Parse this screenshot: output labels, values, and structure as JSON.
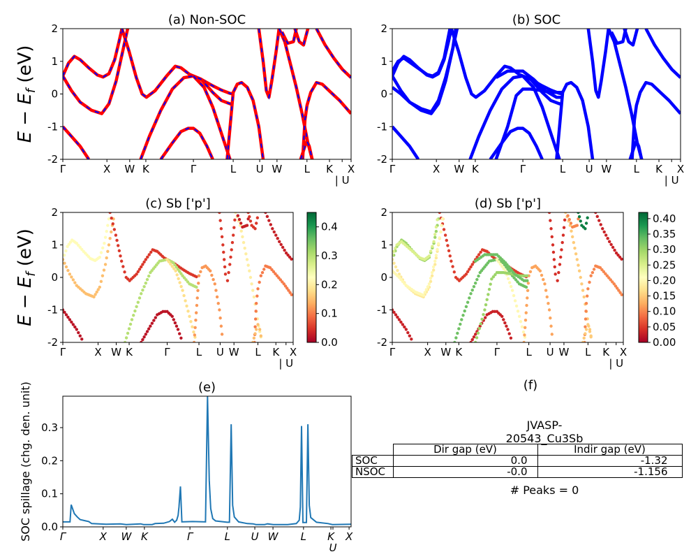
{
  "chart_data": [
    {
      "id": "a",
      "type": "line",
      "title": "(a) Non-SOC",
      "ylabel": {
        "main": "E − E",
        "sub": "f",
        "unit": " (eV)"
      },
      "ylim": [
        -2,
        2
      ],
      "yticks": [
        "2",
        "1",
        "0",
        "-1",
        "-2"
      ],
      "ytick_values": [
        2,
        1,
        0,
        -1,
        -2
      ],
      "xlim": [
        0,
        100
      ],
      "xticks": [
        {
          "k": 0,
          "label": "Γ"
        },
        {
          "k": 15.3,
          "label": "X"
        },
        {
          "k": 23.2,
          "label": "W"
        },
        {
          "k": 28.8,
          "label": "K"
        },
        {
          "k": 45.3,
          "label": "Γ"
        },
        {
          "k": 59.1,
          "label": "L"
        },
        {
          "k": 68.3,
          "label": "U"
        },
        {
          "k": 74.3,
          "label": "W"
        },
        {
          "k": 84.7,
          "label": "L"
        },
        {
          "k": 92.5,
          "label": "K"
        },
        {
          "k": 96.9,
          "label": "| U"
        },
        {
          "k": 100,
          "label": "X"
        }
      ],
      "line_color": "#ff0000",
      "overlay_color": "#0000ff",
      "overlay_style": "dashed"
    },
    {
      "id": "b",
      "type": "line",
      "title": "(b) SOC",
      "ylim": [
        -2,
        2
      ],
      "yticks": [
        "2",
        "1",
        "0",
        "-1",
        "-2"
      ],
      "ytick_values": [
        2,
        1,
        0,
        -1,
        -2
      ],
      "xlim": [
        0,
        100
      ],
      "xticks": [
        {
          "k": 0,
          "label": "Γ"
        },
        {
          "k": 15.3,
          "label": "X"
        },
        {
          "k": 23.2,
          "label": "W"
        },
        {
          "k": 28.8,
          "label": "K"
        },
        {
          "k": 45.3,
          "label": "Γ"
        },
        {
          "k": 59.1,
          "label": "L"
        },
        {
          "k": 68.3,
          "label": "U"
        },
        {
          "k": 74.3,
          "label": "W"
        },
        {
          "k": 84.7,
          "label": "L"
        },
        {
          "k": 92.5,
          "label": "K"
        },
        {
          "k": 96.9,
          "label": "| U"
        },
        {
          "k": 100,
          "label": "X"
        }
      ],
      "line_color": "#0000ff"
    },
    {
      "id": "c",
      "type": "scatter",
      "title": "(c)  Sb ['p']",
      "ylabel": {
        "main": "E − E",
        "sub": "f",
        "unit": " (eV)"
      },
      "ylim": [
        -2,
        2
      ],
      "yticks": [
        "2",
        "1",
        "0",
        "-1",
        "-2"
      ],
      "ytick_values": [
        2,
        1,
        0,
        -1,
        -2
      ],
      "xlim": [
        0,
        100
      ],
      "xticks": [
        {
          "k": 0,
          "label": "Γ"
        },
        {
          "k": 15.3,
          "label": "X"
        },
        {
          "k": 23.2,
          "label": "W"
        },
        {
          "k": 28.8,
          "label": "K"
        },
        {
          "k": 45.3,
          "label": "Γ"
        },
        {
          "k": 59.1,
          "label": "L"
        },
        {
          "k": 68.3,
          "label": "U"
        },
        {
          "k": 74.3,
          "label": "W"
        },
        {
          "k": 84.7,
          "label": "L"
        },
        {
          "k": 92.5,
          "label": "K"
        },
        {
          "k": 96.9,
          "label": "| U"
        },
        {
          "k": 100,
          "label": "X"
        }
      ],
      "colormap": "RdYlGn",
      "colorbar_range": [
        0,
        0.45
      ],
      "colorbar_ticks": [
        {
          "v": 0,
          "label": "0.0"
        },
        {
          "v": 0.1,
          "label": "0.1"
        },
        {
          "v": 0.2,
          "label": "0.2"
        },
        {
          "v": 0.3,
          "label": "0.3"
        },
        {
          "v": 0.4,
          "label": "0.4"
        }
      ]
    },
    {
      "id": "d",
      "type": "scatter",
      "title": "(d) Sb ['p']",
      "ylim": [
        -2,
        2
      ],
      "yticks": [
        "2",
        "1",
        "0",
        "-1",
        "-2"
      ],
      "ytick_values": [
        2,
        1,
        0,
        -1,
        -2
      ],
      "xlim": [
        0,
        100
      ],
      "xticks": [
        {
          "k": 0,
          "label": "Γ"
        },
        {
          "k": 15.3,
          "label": "X"
        },
        {
          "k": 23.2,
          "label": "W"
        },
        {
          "k": 28.8,
          "label": "K"
        },
        {
          "k": 45.3,
          "label": "Γ"
        },
        {
          "k": 59.1,
          "label": "L"
        },
        {
          "k": 68.3,
          "label": "U"
        },
        {
          "k": 74.3,
          "label": "W"
        },
        {
          "k": 84.7,
          "label": "L"
        },
        {
          "k": 92.5,
          "label": "K"
        },
        {
          "k": 96.9,
          "label": "| U"
        },
        {
          "k": 100,
          "label": "X"
        }
      ],
      "colormap": "RdYlGn",
      "colorbar_range": [
        0,
        0.42
      ],
      "colorbar_ticks": [
        {
          "v": 0,
          "label": "0.00"
        },
        {
          "v": 0.05,
          "label": "0.05"
        },
        {
          "v": 0.1,
          "label": "0.10"
        },
        {
          "v": 0.15,
          "label": "0.15"
        },
        {
          "v": 0.2,
          "label": "0.20"
        },
        {
          "v": 0.25,
          "label": "0.25"
        },
        {
          "v": 0.3,
          "label": "0.30"
        },
        {
          "v": 0.35,
          "label": "0.35"
        },
        {
          "v": 0.4,
          "label": "0.40"
        }
      ]
    },
    {
      "id": "e",
      "type": "line",
      "title": "(e)",
      "ylabel": "SOC spillage (chg. den. unit)",
      "ylim": [
        0,
        0.395
      ],
      "yticks": [
        "0.0",
        "0.1",
        "0.2",
        "0.3"
      ],
      "ytick_values": [
        0,
        0.1,
        0.2,
        0.3
      ],
      "xlim": [
        0,
        100
      ],
      "xticks": [
        {
          "k": 0,
          "label": "Γ"
        },
        {
          "k": 14.0,
          "label": "X"
        },
        {
          "k": 22.0,
          "label": "W"
        },
        {
          "k": 28.3,
          "label": "K"
        },
        {
          "k": 44.1,
          "label": "Γ"
        },
        {
          "k": 57.1,
          "label": "L"
        },
        {
          "k": 66.6,
          "label": "U"
        },
        {
          "k": 72.9,
          "label": "W"
        },
        {
          "k": 83.5,
          "label": "L"
        },
        {
          "k": 93.0,
          "label": "K"
        },
        {
          "k": 93.7,
          "label": "U"
        },
        {
          "k": 99.3,
          "label": "X"
        }
      ],
      "line_color": "#1f77b4",
      "points": [
        [
          0,
          0.015
        ],
        [
          2.5,
          0.015
        ],
        [
          2.9,
          0.067
        ],
        [
          4,
          0.04
        ],
        [
          5,
          0.03
        ],
        [
          6,
          0.022
        ],
        [
          8,
          0.018
        ],
        [
          9,
          0.016
        ],
        [
          10,
          0.01
        ],
        [
          15,
          0.008
        ],
        [
          20,
          0.009
        ],
        [
          22,
          0.007
        ],
        [
          27,
          0.009
        ],
        [
          28,
          0.007
        ],
        [
          31,
          0.007
        ],
        [
          32,
          0.01
        ],
        [
          35,
          0.011
        ],
        [
          37,
          0.016
        ],
        [
          38,
          0.023
        ],
        [
          38.8,
          0.014
        ],
        [
          39.5,
          0.02
        ],
        [
          40,
          0.035
        ],
        [
          40.3,
          0.06
        ],
        [
          40.8,
          0.122
        ],
        [
          41.3,
          0.015
        ],
        [
          45,
          0.016
        ],
        [
          49.5,
          0.015
        ],
        [
          50.2,
          0.395
        ],
        [
          50.8,
          0.14
        ],
        [
          51.3,
          0.055
        ],
        [
          52,
          0.025
        ],
        [
          53,
          0.018
        ],
        [
          57,
          0.014
        ],
        [
          57.8,
          0.014
        ],
        [
          58.4,
          0.31
        ],
        [
          58.9,
          0.065
        ],
        [
          59.5,
          0.03
        ],
        [
          61,
          0.015
        ],
        [
          64,
          0.01
        ],
        [
          66,
          0.009
        ],
        [
          67,
          0.007
        ],
        [
          70,
          0.007
        ],
        [
          71,
          0.009
        ],
        [
          73,
          0.007
        ],
        [
          78,
          0.007
        ],
        [
          81,
          0.01
        ],
        [
          82,
          0.02
        ],
        [
          82.4,
          0.06
        ],
        [
          82.8,
          0.305
        ],
        [
          83.3,
          0.013
        ],
        [
          84.5,
          0.013
        ],
        [
          85.0,
          0.31
        ],
        [
          85.5,
          0.065
        ],
        [
          86,
          0.028
        ],
        [
          88,
          0.014
        ],
        [
          92,
          0.01
        ],
        [
          93.5,
          0.007
        ],
        [
          100,
          0.008
        ]
      ]
    }
  ],
  "bands": [
    {
      "pts": [
        [
          0,
          0.55
        ],
        [
          2,
          0.95
        ],
        [
          4,
          1.15
        ],
        [
          6,
          1.05
        ],
        [
          9,
          0.8
        ],
        [
          12,
          0.58
        ],
        [
          14,
          0.52
        ],
        [
          16,
          0.62
        ],
        [
          18,
          1.05
        ],
        [
          19.5,
          1.6
        ],
        [
          20.5,
          2
        ]
      ],
      "w_c": 0.22,
      "w_d": 0.3
    },
    {
      "pts": [
        [
          0,
          0.55
        ],
        [
          3,
          0.1
        ],
        [
          6,
          -0.25
        ],
        [
          10,
          -0.5
        ],
        [
          13.5,
          -0.6
        ],
        [
          16,
          -0.3
        ],
        [
          18.5,
          0.4
        ],
        [
          20.5,
          1.2
        ],
        [
          22.5,
          2
        ]
      ],
      "w_c": 0.15,
      "w_d": 0.18
    },
    {
      "pts": [
        [
          0,
          -1
        ],
        [
          3,
          -1.3
        ],
        [
          6,
          -1.6
        ],
        [
          9,
          -2
        ]
      ],
      "w_c": 0.02,
      "w_d": 0.03
    },
    {
      "pts": [
        [
          20.5,
          2
        ],
        [
          23,
          1.3
        ],
        [
          25.5,
          0.5
        ],
        [
          27.5,
          0
        ],
        [
          29,
          -0.1
        ],
        [
          32,
          0.1
        ],
        [
          36,
          0.55
        ],
        [
          39,
          0.85
        ],
        [
          41,
          0.8
        ],
        [
          44,
          0.6
        ],
        [
          48,
          0.45
        ],
        [
          52,
          0.25
        ],
        [
          55,
          0.12
        ],
        [
          58,
          0.02
        ],
        [
          59.1,
          0
        ]
      ],
      "w_c": 0.05,
      "w_d": 0.05
    },
    {
      "pts": [
        [
          27,
          -2
        ],
        [
          30,
          -1.3
        ],
        [
          34,
          -0.5
        ],
        [
          38,
          0.15
        ],
        [
          42,
          0.5
        ],
        [
          45.3,
          0.55
        ],
        [
          48,
          0.45
        ],
        [
          52,
          0.05
        ],
        [
          55,
          -0.2
        ],
        [
          58,
          -0.3
        ],
        [
          59.1,
          -0.32
        ]
      ],
      "w_c": 0.3,
      "w_d": 0.33
    },
    {
      "pts": [
        [
          34,
          -2
        ],
        [
          38,
          -1.5
        ],
        [
          41,
          -1.15
        ],
        [
          43.5,
          -1.05
        ],
        [
          45.3,
          -1.05
        ],
        [
          47.5,
          -1.2
        ],
        [
          50,
          -1.6
        ],
        [
          52,
          -2
        ]
      ],
      "w_c": 0.02,
      "w_d": 0.03
    },
    {
      "pts": [
        [
          45.3,
          0.55
        ],
        [
          49,
          0.2
        ],
        [
          52,
          -0.4
        ],
        [
          55,
          -1.2
        ],
        [
          58,
          -2
        ]
      ],
      "w_c": 0.18,
      "w_d": 0.2
    },
    {
      "pts": [
        [
          57,
          -2
        ],
        [
          59.1,
          0.05
        ],
        [
          60.5,
          0.3
        ],
        [
          62,
          0.35
        ],
        [
          64,
          0.2
        ],
        [
          66,
          -0.2
        ],
        [
          68,
          -1
        ],
        [
          69.5,
          -2
        ]
      ],
      "w_c": 0.12,
      "w_d": 0.12
    },
    {
      "pts": [
        [
          68,
          2
        ],
        [
          69.5,
          1
        ],
        [
          70.6,
          0.1
        ],
        [
          71.5,
          -0.1
        ],
        [
          72.5,
          0.4
        ],
        [
          74,
          1.3
        ],
        [
          75,
          2
        ]
      ],
      "w_c": 0.05,
      "w_d": 0.04
    },
    {
      "pts": [
        [
          75,
          2
        ],
        [
          77,
          1.6
        ],
        [
          79,
          0.9
        ],
        [
          81,
          0.2
        ],
        [
          83,
          -0.6
        ],
        [
          85,
          -1.5
        ],
        [
          86.5,
          -2
        ]
      ],
      "w_c": 0.2,
      "w_d": 0.15
    },
    {
      "pts": [
        [
          76,
          1.9
        ],
        [
          78,
          1.55
        ],
        [
          80,
          1.6
        ],
        [
          81,
          2
        ]
      ],
      "w_c": 0.03,
      "w_d": 0.1
    },
    {
      "pts": [
        [
          83.2,
          -2
        ],
        [
          84,
          -0.8
        ],
        [
          84.7,
          -0.35
        ],
        [
          86,
          0.05
        ],
        [
          88,
          0.35
        ],
        [
          90,
          0.3
        ],
        [
          93,
          0.05
        ],
        [
          96,
          -0.2
        ],
        [
          100,
          -0.6
        ]
      ],
      "w_c": 0.1,
      "w_d": 0.1
    },
    {
      "pts": [
        [
          82.5,
          -2
        ],
        [
          84,
          -1.6
        ],
        [
          84.7,
          -1.45
        ],
        [
          85.5,
          -1.6
        ],
        [
          86.5,
          -2
        ]
      ],
      "w_c": 0.15,
      "w_d": 0.15
    },
    {
      "pts": [
        [
          88,
          2
        ],
        [
          91,
          1.5
        ],
        [
          94,
          1.1
        ],
        [
          97,
          0.75
        ],
        [
          100,
          0.5
        ]
      ],
      "w_c": 0.03,
      "w_d": 0.03
    },
    {
      "pts": [
        [
          80.5,
          2
        ],
        [
          82,
          1.6
        ],
        [
          83.5,
          1.5
        ],
        [
          85,
          2
        ]
      ],
      "w_c": 0.05,
      "w_d": 0.4
    }
  ],
  "soc_extra_bands": [
    {
      "pts": [
        [
          0,
          0.2
        ],
        [
          3,
          0
        ],
        [
          6,
          -0.25
        ],
        [
          10,
          -0.45
        ],
        [
          13.5,
          -0.55
        ],
        [
          16,
          -0.2
        ],
        [
          18.5,
          0.5
        ],
        [
          21,
          1.4
        ],
        [
          22,
          2
        ]
      ],
      "w_d": 0.2
    },
    {
      "pts": [
        [
          0,
          0.7
        ],
        [
          2,
          1.0
        ],
        [
          4,
          1.1
        ],
        [
          8,
          0.85
        ],
        [
          12,
          0.6
        ],
        [
          14,
          0.55
        ],
        [
          16,
          0.66
        ],
        [
          18,
          1.1
        ],
        [
          20,
          2
        ]
      ],
      "w_d": 0.25
    },
    {
      "pts": [
        [
          36,
          -2
        ],
        [
          40,
          -1
        ],
        [
          43,
          -0.05
        ],
        [
          45.3,
          0.15
        ],
        [
          48,
          0.15
        ],
        [
          52,
          0.1
        ],
        [
          55,
          0.05
        ],
        [
          59.1,
          0.05
        ]
      ],
      "w_d": 0.3
    },
    {
      "pts": [
        [
          36,
          0.5
        ],
        [
          40,
          0.7
        ],
        [
          45.3,
          0.7
        ],
        [
          49,
          0.45
        ],
        [
          53,
          0.1
        ],
        [
          57,
          -0.1
        ],
        [
          59.1,
          -0.1
        ]
      ],
      "w_d": 0.33
    }
  ],
  "table": {
    "title": "(f)",
    "subtitle": "JVASP-20543_Cu3Sb",
    "columns": [
      "Dir gap (eV)",
      "Indir gap (eV)"
    ],
    "rows": [
      {
        "label": "SOC",
        "values": [
          "0.0",
          "-1.32"
        ]
      },
      {
        "label": "NSOC",
        "values": [
          "-0.0",
          "-1.156"
        ]
      }
    ],
    "footer": "# Peaks = 0"
  }
}
